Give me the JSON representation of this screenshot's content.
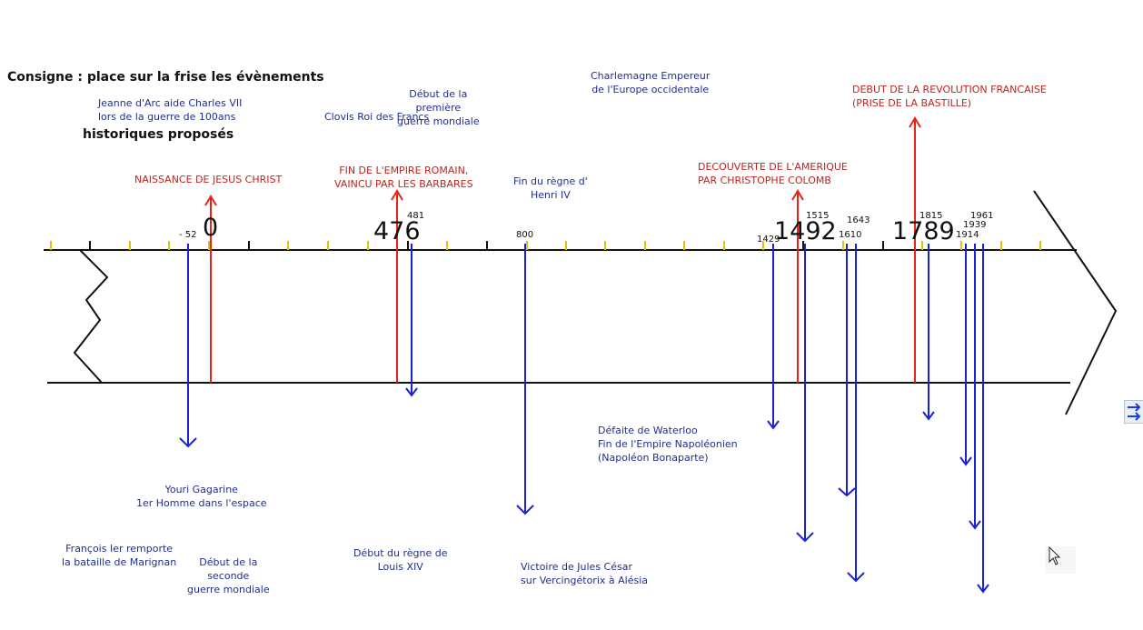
{
  "instruction": {
    "line1": "Consigne : place sur la frise les évènements",
    "line2": "historiques proposés"
  },
  "years": {
    "y_minus52": "- 52",
    "y0": "0",
    "y476": "476",
    "y481": "481",
    "y800": "800",
    "y1429": "1429",
    "y1492": "1492",
    "y1515": "1515",
    "y1610": "1610",
    "y1643": "1643",
    "y1789": "1789",
    "y1815": "1815",
    "y1914": "1914",
    "y1939": "1939",
    "y1961": "1961"
  },
  "placed_events": {
    "jesus": "NAISSANCE DE JESUS CHRIST",
    "rome": "FIN DE L'EMPIRE ROMAIN,\nVAINCU PAR LES BARBARES",
    "america": "DECOUVERTE DE L'AMERIQUE\nPAR CHRISTOPHE COLOMB",
    "revolution": "DEBUT DE LA REVOLUTION FRANCAISE\n(PRISE DE LA BASTILLE)"
  },
  "proposed_events": {
    "jeanne": "Jeanne d'Arc aide Charles VII\nlors de la guerre de 100ans",
    "ww1": "Début de la\npremière\nguerre mondiale",
    "clovis": "Clovis Roi des Francs",
    "charlemagne": "Charlemagne Empereur\nde l'Europe occidentale",
    "henri": "Fin du règne d'\nHenri IV",
    "waterloo": "Défaite de Waterloo\nFin de l'Empire Napoléonien\n(Napoléon Bonaparte)",
    "gagarine": "Youri Gagarine\n1er Homme dans l'espace",
    "francois": "François Ier remporte\nla bataille de Marignan",
    "ww2": "Début de la\nseconde\nguerre mondiale",
    "louis": "Début du règne de\nLouis XIV",
    "cesar": "Victoire de Jules César\nsur Vercingétorix à Alésia"
  },
  "colors": {
    "placed": "#e8231a",
    "proposed": "#1a22d6",
    "axis": "#111111",
    "tick_yellow": "#e0c400"
  }
}
